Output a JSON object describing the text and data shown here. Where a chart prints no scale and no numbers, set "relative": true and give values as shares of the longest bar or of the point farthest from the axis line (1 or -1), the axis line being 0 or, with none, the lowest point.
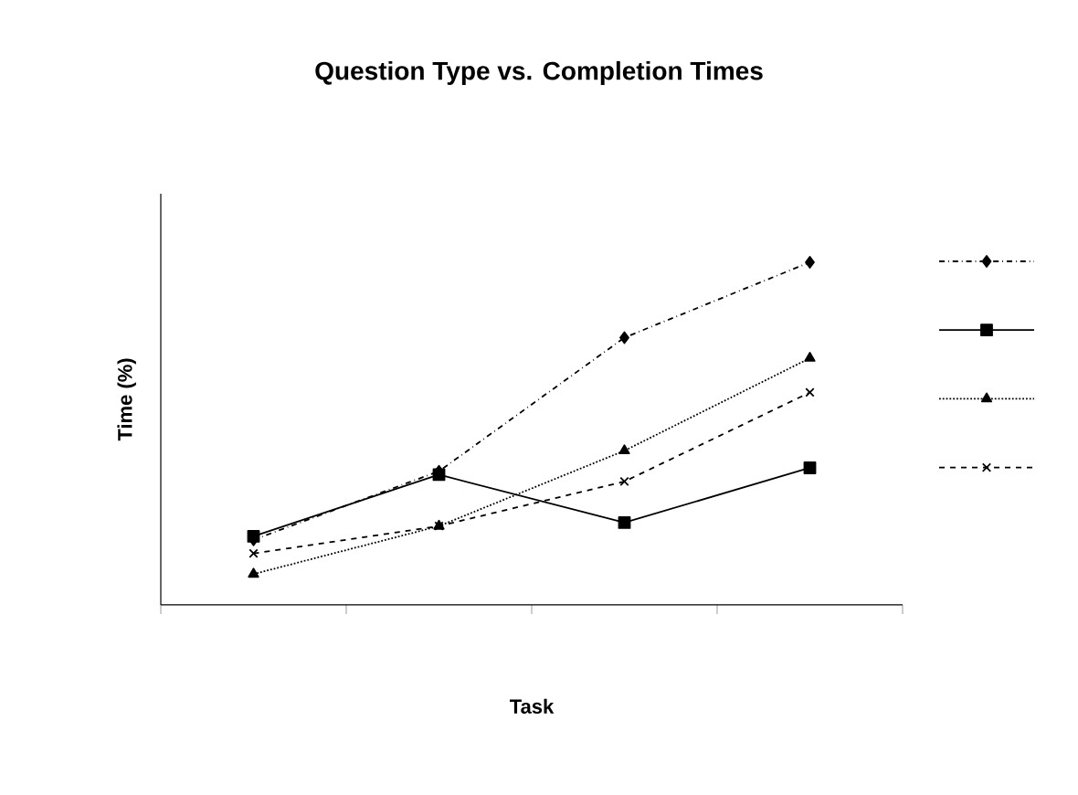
{
  "chart_data": {
    "type": "line",
    "title": "Question Type vs. Completion Times",
    "xlabel": "Task",
    "ylabel": "Time (%)",
    "categories": [
      null,
      null,
      null,
      null
    ],
    "relative": true,
    "series": [
      {
        "color": "#000000",
        "marker": "diamond",
        "line_style": "dashdot",
        "values": [
          0.19,
          0.39,
          0.78,
          1.0
        ]
      },
      {
        "color": "#000000",
        "marker": "square",
        "line_style": "solid",
        "values": [
          0.2,
          0.38,
          0.24,
          0.4
        ]
      },
      {
        "color": "#000000",
        "marker": "triangle",
        "line_style": "dotted",
        "values": [
          0.09,
          0.23,
          0.45,
          0.72
        ]
      },
      {
        "color": "#000000",
        "marker": "cross",
        "line_style": "dashed",
        "values": [
          0.15,
          0.23,
          0.36,
          0.62
        ]
      }
    ]
  }
}
